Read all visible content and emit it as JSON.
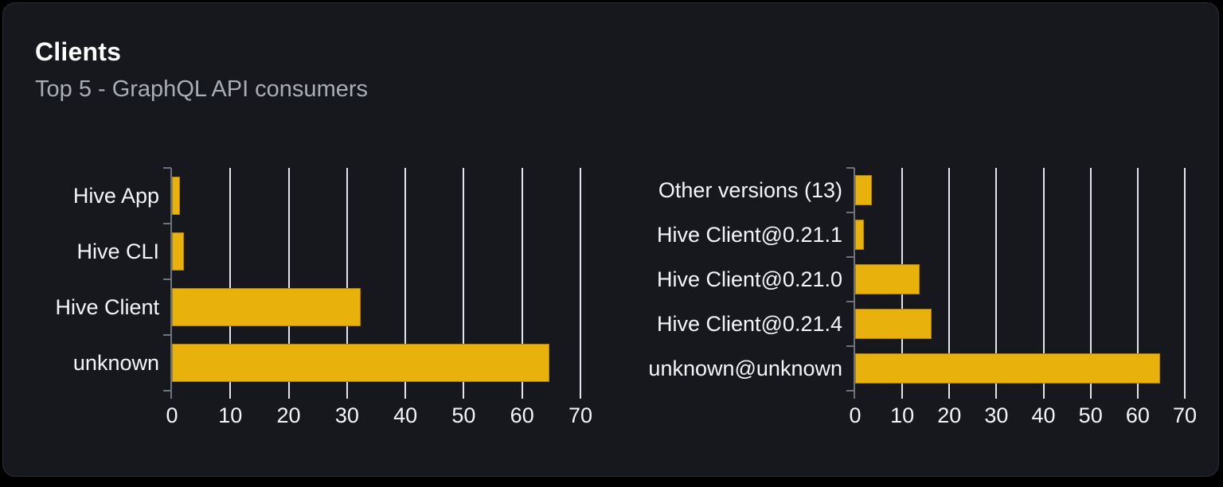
{
  "card": {
    "title": "Clients",
    "subtitle": "Top 5 - GraphQL API consumers"
  },
  "colors": {
    "page_bg": "#000000",
    "card_bg": "#16181d",
    "card_border": "#2b2e34",
    "bar": "#e8b10c",
    "gridline": "#e2e5ec",
    "axis": "#6e737b",
    "text": "#f4f5f7",
    "subtitle_text": "#a9adb4"
  },
  "chart_data": [
    {
      "type": "bar",
      "orientation": "horizontal",
      "title": "Clients by name",
      "categories": [
        "Hive App",
        "Hive CLI",
        "Hive Client",
        "unknown"
      ],
      "values": [
        1.3,
        2,
        32.3,
        64.7
      ],
      "x_ticks": [
        0,
        10,
        20,
        30,
        40,
        50,
        60,
        70
      ],
      "xlim": [
        0,
        70
      ],
      "grid": true,
      "legend": "none"
    },
    {
      "type": "bar",
      "orientation": "horizontal",
      "title": "Clients by version",
      "categories": [
        "Other versions (13)",
        "Hive Client@0.21.1",
        "Hive Client@0.21.0",
        "Hive Client@0.21.4",
        "unknown@unknown"
      ],
      "values": [
        3.6,
        1.8,
        13.7,
        16.3,
        64.7
      ],
      "x_ticks": [
        0,
        10,
        20,
        30,
        40,
        50,
        60,
        70
      ],
      "xlim": [
        0,
        70
      ],
      "grid": true,
      "legend": "none"
    }
  ]
}
